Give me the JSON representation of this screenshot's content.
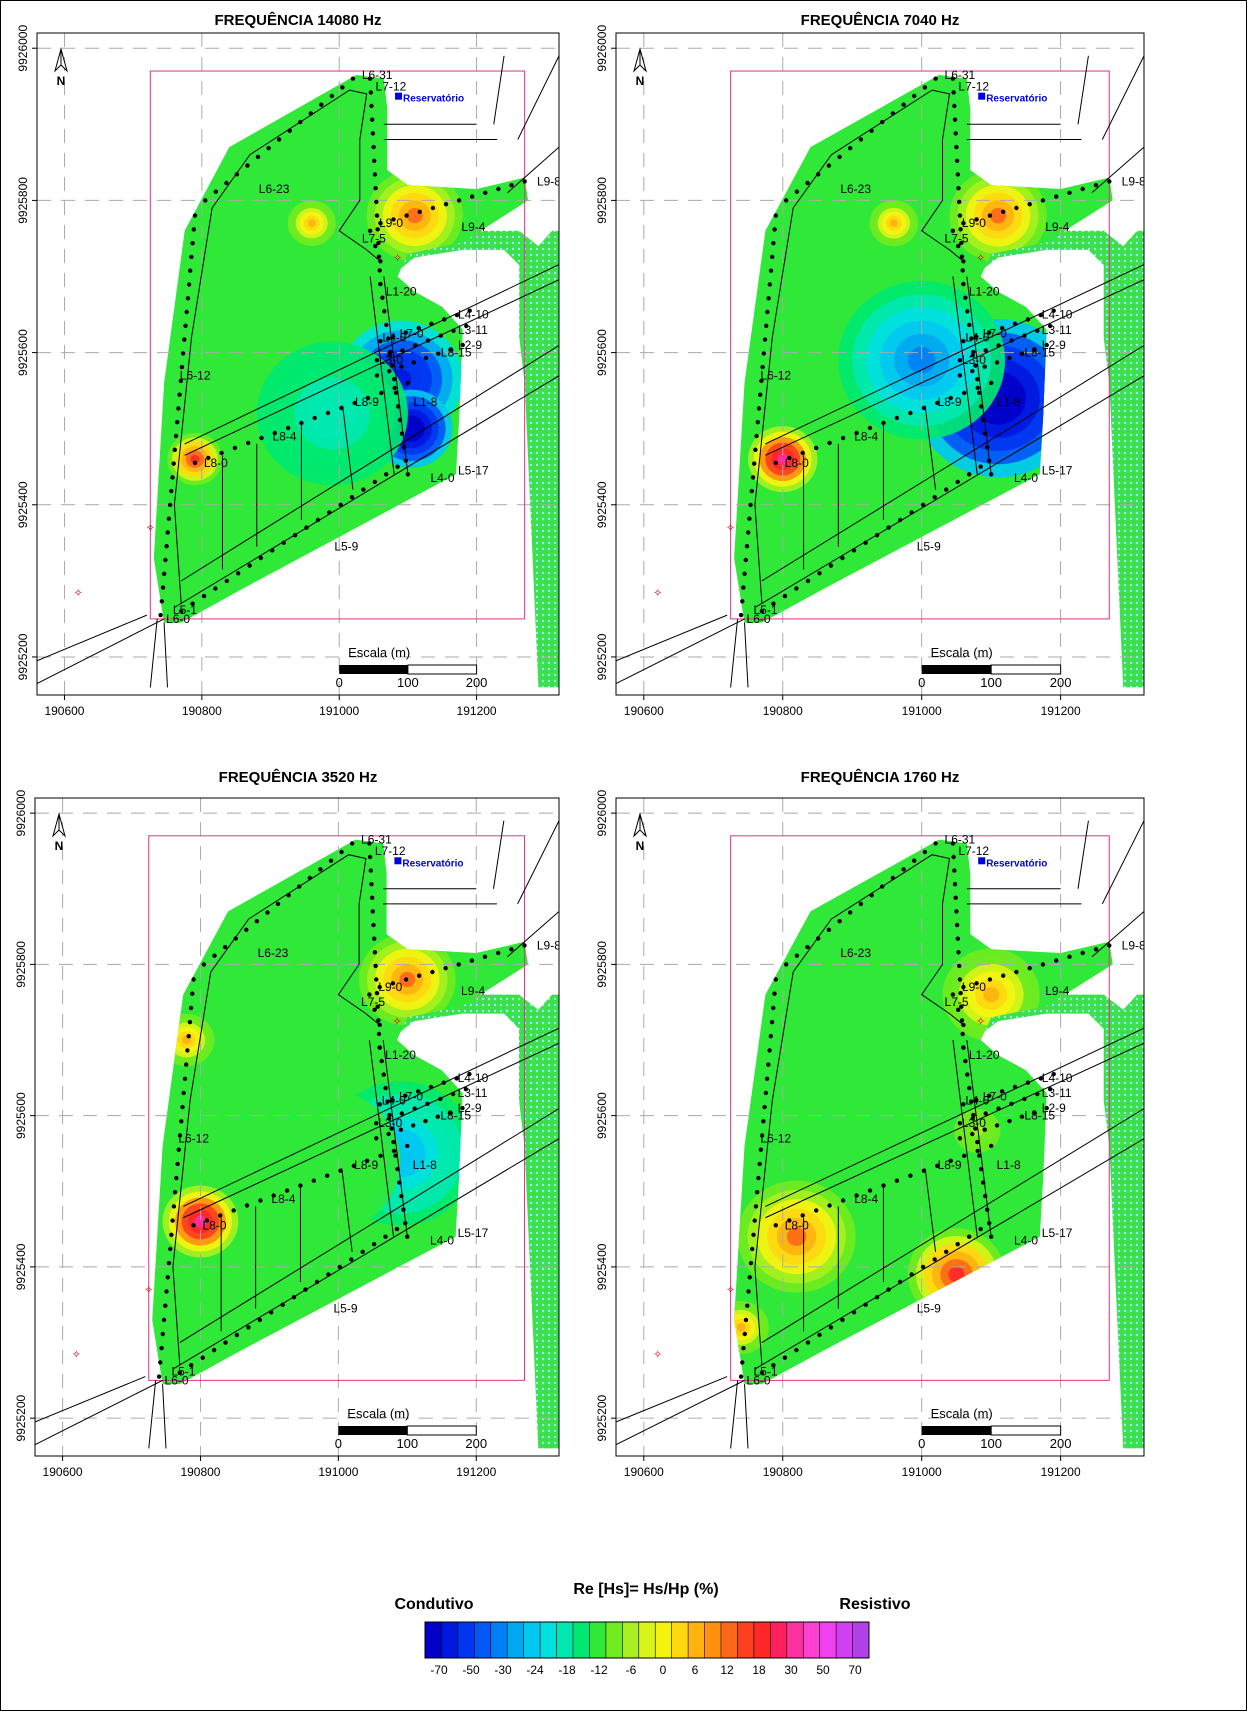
{
  "figure_title": "",
  "panels": [
    {
      "title": "FREQUÊNCIA 14080 Hz",
      "anomalies": [
        {
          "x": 191090,
          "y": 9925565,
          "v": -55,
          "r": 90
        },
        {
          "x": 191105,
          "y": 9925500,
          "v": -70,
          "r": 60
        },
        {
          "x": 190990,
          "y": 9925520,
          "v": -18,
          "r": 110
        },
        {
          "x": 190790,
          "y": 9925460,
          "v": 18,
          "r": 40
        },
        {
          "x": 191110,
          "y": 9925780,
          "v": 12,
          "r": 70
        },
        {
          "x": 190960,
          "y": 9925770,
          "v": 6,
          "r": 35
        }
      ]
    },
    {
      "title": "FREQUÊNCIA 7040 Hz",
      "anomalies": [
        {
          "x": 191110,
          "y": 9925540,
          "v": -70,
          "r": 120
        },
        {
          "x": 191000,
          "y": 9925590,
          "v": -30,
          "r": 120
        },
        {
          "x": 190800,
          "y": 9925460,
          "v": 30,
          "r": 50
        },
        {
          "x": 191110,
          "y": 9925780,
          "v": 12,
          "r": 70
        },
        {
          "x": 190960,
          "y": 9925770,
          "v": 6,
          "r": 35
        }
      ]
    },
    {
      "title": "FREQUÊNCIA 3520 Hz",
      "anomalies": [
        {
          "x": 191090,
          "y": 9925550,
          "v": -24,
          "r": 110
        },
        {
          "x": 190980,
          "y": 9925540,
          "v": -12,
          "r": 110
        },
        {
          "x": 190800,
          "y": 9925460,
          "v": 30,
          "r": 55
        },
        {
          "x": 191100,
          "y": 9925780,
          "v": 12,
          "r": 70
        },
        {
          "x": 190780,
          "y": 9925700,
          "v": 6,
          "r": 40
        }
      ]
    },
    {
      "title": "FREQUÊNCIA 1760 Hz",
      "anomalies": [
        {
          "x": 190820,
          "y": 9925440,
          "v": 12,
          "r": 85
        },
        {
          "x": 191050,
          "y": 9925390,
          "v": 18,
          "r": 70
        },
        {
          "x": 191080,
          "y": 9925580,
          "v": -6,
          "r": 50
        },
        {
          "x": 191100,
          "y": 9925760,
          "v": 6,
          "r": 70
        },
        {
          "x": 190740,
          "y": 9925320,
          "v": 6,
          "r": 40
        }
      ]
    }
  ],
  "axes": {
    "x_ticks": [
      "190600",
      "190800",
      "191000",
      "191200"
    ],
    "y_ticks": [
      "9926000",
      "9925800",
      "9925600",
      "9925400",
      "9925200"
    ]
  },
  "north_label": "N",
  "scale_bar": {
    "label": "Escala (m)",
    "ticks": [
      "0",
      "100",
      "200"
    ]
  },
  "map_labels": [
    {
      "text": "L6-31",
      "x": 191030,
      "y": 9925965
    },
    {
      "text": "L7-12",
      "x": 191050,
      "y": 9925950
    },
    {
      "text": "Reservatório",
      "x": 191090,
      "y": 9925935
    },
    {
      "text": "L9-8",
      "x": 191285,
      "y": 9925825
    },
    {
      "text": "L6-23",
      "x": 190880,
      "y": 9925815
    },
    {
      "text": "L9-0",
      "x": 191055,
      "y": 9925770
    },
    {
      "text": "L9-4",
      "x": 191175,
      "y": 9925765
    },
    {
      "text": "L7-5",
      "x": 191030,
      "y": 9925750
    },
    {
      "text": "L1-20",
      "x": 191065,
      "y": 9925680
    },
    {
      "text": "L4-10",
      "x": 191170,
      "y": 9925650
    },
    {
      "text": "L3-11",
      "x": 191170,
      "y": 9925630
    },
    {
      "text": "L4-0",
      "x": 191060,
      "y": 9925620
    },
    {
      "text": "L7-0",
      "x": 191085,
      "y": 9925625
    },
    {
      "text": "L2-9",
      "x": 191170,
      "y": 9925610
    },
    {
      "text": "L8-15",
      "x": 191145,
      "y": 9925600
    },
    {
      "text": "L3-0",
      "x": 191055,
      "y": 9925590
    },
    {
      "text": "L6-12",
      "x": 190765,
      "y": 9925570
    },
    {
      "text": "L8-9",
      "x": 191020,
      "y": 9925535
    },
    {
      "text": "L1-8",
      "x": 191105,
      "y": 9925535
    },
    {
      "text": "L8-4",
      "x": 190900,
      "y": 9925490
    },
    {
      "text": "L8-0",
      "x": 190800,
      "y": 9925455
    },
    {
      "text": "L5-17",
      "x": 191170,
      "y": 9925445
    },
    {
      "text": "L4-0",
      "x": 191130,
      "y": 9925435
    },
    {
      "text": "L5-9",
      "x": 190990,
      "y": 9925345
    },
    {
      "text": "L5-1",
      "x": 190755,
      "y": 9925262
    },
    {
      "text": "L6-0",
      "x": 190745,
      "y": 9925250
    }
  ],
  "legend": {
    "title": "Re [Hs]= Hs/Hp (%)",
    "left_label": "Condutivo",
    "right_label": "Resistivo",
    "tick_labels": [
      "-70",
      "-50",
      "-30",
      "-24",
      "-18",
      "-12",
      "-6",
      "0",
      "6",
      "12",
      "18",
      "30",
      "50",
      "70"
    ],
    "levels": [
      -70,
      -60,
      -50,
      -40,
      -30,
      -27,
      -24,
      -21,
      -18,
      -15,
      -12,
      -9,
      -6,
      -3,
      0,
      3,
      6,
      9,
      12,
      15,
      18,
      24,
      30,
      40,
      50,
      60,
      70
    ],
    "colors": [
      "#0000c8",
      "#0018e0",
      "#0036f0",
      "#0058f5",
      "#0080f5",
      "#00a8f0",
      "#00c8f0",
      "#00e0e0",
      "#00e8b0",
      "#00e870",
      "#30e838",
      "#70ec20",
      "#a8f020",
      "#d8f418",
      "#f4f410",
      "#ffd810",
      "#ffb410",
      "#ff9010",
      "#ff6818",
      "#ff4020",
      "#ff2828",
      "#ff2060",
      "#ff30a0",
      "#ff40d0",
      "#f040f0",
      "#d040f0",
      "#b040e8"
    ]
  },
  "chart_data": [
    {
      "type": "heatmap",
      "title": "FREQUÊNCIA 14080 Hz",
      "xlabel": "",
      "ylabel": "",
      "xlim": [
        190560,
        191320
      ],
      "ylim": [
        9925150,
        9926020
      ]
    },
    {
      "type": "heatmap",
      "title": "FREQUÊNCIA 7040 Hz",
      "xlabel": "",
      "ylabel": "",
      "xlim": [
        190560,
        191320
      ],
      "ylim": [
        9925150,
        9926020
      ]
    },
    {
      "type": "heatmap",
      "title": "FREQUÊNCIA 3520 Hz",
      "xlabel": "",
      "ylabel": "",
      "xlim": [
        190560,
        191320
      ],
      "ylim": [
        9925150,
        9926020
      ]
    },
    {
      "type": "heatmap",
      "title": "FREQUÊNCIA 1760 Hz",
      "xlabel": "",
      "ylabel": "",
      "xlim": [
        190560,
        191320
      ],
      "ylim": [
        9925150,
        9926020
      ]
    }
  ]
}
